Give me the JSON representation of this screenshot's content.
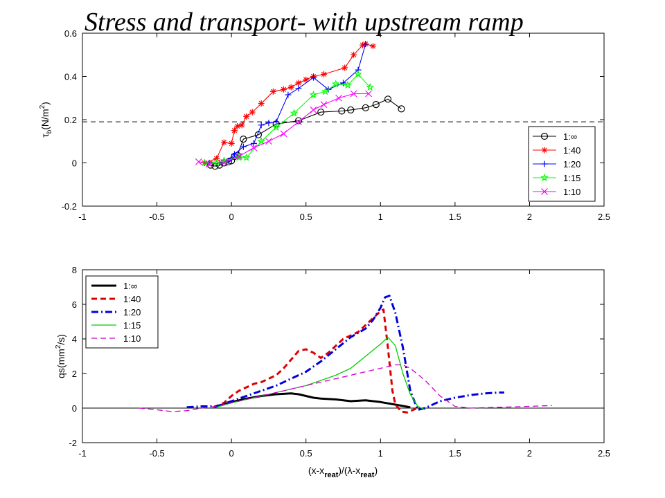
{
  "slide": {
    "title": "Stress and transport- with upstream ramp"
  },
  "chart_data": [
    {
      "type": "line",
      "ylabel_main": "τ",
      "ylabel_sub": "b",
      "ylabel_rest": "(N/m",
      "ylabel_sup": "2",
      "ylabel_close": ")",
      "xlim": [
        -1,
        2.5
      ],
      "ylim": [
        -0.2,
        0.6
      ],
      "xticks": [
        -1,
        -0.5,
        0,
        0.5,
        1,
        1.5,
        2,
        2.5
      ],
      "xtick_labels": [
        "-1",
        "-0.5",
        "0",
        "0.5",
        "1",
        "1.5",
        "2",
        "2.5"
      ],
      "yticks": [
        -0.2,
        0,
        0.2,
        0.4,
        0.6
      ],
      "ytick_labels": [
        "-0.2",
        "0",
        "0.2",
        "0.4",
        "0.6"
      ],
      "legend_position": "right",
      "reference_line": {
        "y": 0.19,
        "style": "dashed",
        "color": "#000000"
      },
      "series": [
        {
          "name": "1:∞",
          "color": "#000000",
          "marker": "circle",
          "x": [
            -0.14,
            -0.11,
            -0.08,
            -0.05,
            -0.02,
            0.0,
            0.02,
            0.04,
            0.08,
            0.18,
            0.3,
            0.45,
            0.6,
            0.74,
            0.8,
            0.9,
            0.97,
            1.05,
            1.14
          ],
          "y": [
            -0.01,
            -0.015,
            -0.01,
            0.0,
            0.005,
            0.01,
            0.03,
            0.035,
            0.11,
            0.13,
            0.18,
            0.195,
            0.235,
            0.24,
            0.245,
            0.255,
            0.27,
            0.295,
            0.25
          ]
        },
        {
          "name": "1:40",
          "color": "#ff0000",
          "marker": "asterisk",
          "x": [
            -0.18,
            -0.1,
            -0.05,
            0.0,
            0.02,
            0.04,
            0.07,
            0.1,
            0.14,
            0.2,
            0.28,
            0.35,
            0.4,
            0.45,
            0.5,
            0.55,
            0.62,
            0.76,
            0.82,
            0.88,
            0.9,
            0.95
          ],
          "y": [
            0.0,
            0.02,
            0.095,
            0.09,
            0.15,
            0.17,
            0.175,
            0.215,
            0.235,
            0.275,
            0.33,
            0.34,
            0.35,
            0.37,
            0.385,
            0.4,
            0.41,
            0.44,
            0.5,
            0.545,
            0.55,
            0.54
          ]
        },
        {
          "name": "1:20",
          "color": "#0000ff",
          "marker": "plus",
          "x": [
            -0.15,
            -0.08,
            -0.02,
            0.02,
            0.08,
            0.15,
            0.2,
            0.25,
            0.3,
            0.38,
            0.45,
            0.55,
            0.65,
            0.75,
            0.85,
            0.9
          ],
          "y": [
            0.0,
            0.0,
            0.01,
            0.04,
            0.075,
            0.09,
            0.175,
            0.185,
            0.19,
            0.315,
            0.345,
            0.395,
            0.34,
            0.37,
            0.43,
            0.55
          ]
        },
        {
          "name": "1:15",
          "color": "#00ff00",
          "marker": "pentagram",
          "x": [
            -0.18,
            -0.1,
            -0.05,
            0.05,
            0.1,
            0.2,
            0.3,
            0.42,
            0.55,
            0.63,
            0.7,
            0.78,
            0.85,
            0.93
          ],
          "y": [
            0.0,
            0.0,
            0.01,
            0.025,
            0.025,
            0.1,
            0.165,
            0.23,
            0.315,
            0.33,
            0.365,
            0.36,
            0.41,
            0.35
          ]
        },
        {
          "name": "1:10",
          "color": "#ff00ff",
          "marker": "x",
          "x": [
            -0.22,
            -0.15,
            -0.05,
            0.05,
            0.15,
            0.25,
            0.35,
            0.45,
            0.55,
            0.62,
            0.72,
            0.82,
            0.92
          ],
          "y": [
            0.005,
            -0.005,
            0.0,
            0.03,
            0.07,
            0.1,
            0.135,
            0.19,
            0.245,
            0.27,
            0.3,
            0.32,
            0.32
          ]
        }
      ]
    },
    {
      "type": "line",
      "ylabel_pre": "qs(mm",
      "ylabel_sup": "2",
      "ylabel_post": "/s)",
      "xlabel_parts": [
        "(x-x",
        "reat",
        ")/(λ-x",
        "reat",
        ")"
      ],
      "xlim": [
        -1,
        2.5
      ],
      "ylim": [
        -2,
        8
      ],
      "xticks": [
        -1,
        -0.5,
        0,
        0.5,
        1,
        1.5,
        2,
        2.5
      ],
      "xtick_labels": [
        "-1",
        "-0.5",
        "0",
        "0.5",
        "1",
        "1.5",
        "2",
        "2.5"
      ],
      "yticks": [
        -2,
        0,
        2,
        4,
        6,
        8
      ],
      "ytick_labels": [
        "-2",
        "0",
        "2",
        "4",
        "6",
        "8"
      ],
      "legend_position": "top-left",
      "reference_line": {
        "y": 0,
        "style": "solid",
        "color": "#000000"
      },
      "series": [
        {
          "name": "1:∞",
          "color": "#000000",
          "style": "solid",
          "width": 3,
          "x": [
            -0.12,
            0.0,
            0.1,
            0.2,
            0.3,
            0.4,
            0.45,
            0.5,
            0.55,
            0.6,
            0.7,
            0.8,
            0.9,
            1.0,
            1.1,
            1.2
          ],
          "y": [
            0.05,
            0.35,
            0.55,
            0.7,
            0.8,
            0.85,
            0.8,
            0.7,
            0.6,
            0.55,
            0.5,
            0.4,
            0.45,
            0.35,
            0.2,
            0.05
          ]
        },
        {
          "name": "1:40",
          "color": "#dd0000",
          "style": "dashed",
          "width": 3,
          "x": [
            -0.12,
            -0.05,
            0.0,
            0.05,
            0.1,
            0.15,
            0.2,
            0.25,
            0.3,
            0.35,
            0.4,
            0.45,
            0.5,
            0.55,
            0.6,
            0.65,
            0.7,
            0.75,
            0.8,
            0.85,
            0.9,
            0.95,
            1.0,
            1.02,
            1.05,
            1.08,
            1.1,
            1.14,
            1.18,
            1.22,
            1.25
          ],
          "y": [
            0.05,
            0.3,
            0.7,
            1.0,
            1.2,
            1.4,
            1.5,
            1.7,
            1.9,
            2.3,
            2.8,
            3.3,
            3.4,
            3.2,
            2.9,
            3.2,
            3.6,
            4.0,
            4.2,
            4.4,
            4.8,
            5.2,
            5.6,
            5.7,
            3.5,
            1.0,
            0.2,
            -0.2,
            -0.25,
            -0.1,
            0.0
          ]
        },
        {
          "name": "1:20",
          "color": "#0000dd",
          "style": "dashdot",
          "width": 3,
          "x": [
            -0.3,
            -0.2,
            -0.1,
            0.0,
            0.1,
            0.2,
            0.3,
            0.4,
            0.5,
            0.6,
            0.7,
            0.8,
            0.9,
            0.95,
            1.0,
            1.03,
            1.06,
            1.1,
            1.15,
            1.2,
            1.25,
            1.3,
            1.4,
            1.5,
            1.6,
            1.7,
            1.8,
            1.83
          ],
          "y": [
            0.05,
            0.1,
            0.1,
            0.4,
            0.7,
            1.0,
            1.3,
            1.7,
            2.1,
            2.7,
            3.4,
            4.1,
            4.6,
            5.1,
            5.8,
            6.4,
            6.5,
            5.5,
            3.5,
            1.0,
            -0.1,
            0.0,
            0.4,
            0.6,
            0.75,
            0.85,
            0.9,
            0.9
          ]
        },
        {
          "name": "1:15",
          "color": "#00cc00",
          "style": "solid",
          "width": 1.3,
          "x": [
            -0.1,
            0.0,
            0.1,
            0.2,
            0.3,
            0.4,
            0.5,
            0.6,
            0.7,
            0.8,
            0.9,
            1.0,
            1.05,
            1.1,
            1.15,
            1.2,
            1.25,
            1.3
          ],
          "y": [
            0.05,
            0.3,
            0.5,
            0.7,
            0.9,
            1.1,
            1.3,
            1.6,
            1.9,
            2.3,
            3.0,
            3.7,
            4.1,
            3.6,
            2.0,
            0.8,
            0.1,
            -0.1
          ]
        },
        {
          "name": "1:10",
          "color": "#cc00cc",
          "style": "dashed",
          "width": 1.3,
          "x": [
            -0.62,
            -0.5,
            -0.4,
            -0.3,
            -0.2,
            -0.1,
            0.0,
            0.2,
            0.4,
            0.6,
            0.8,
            1.0,
            1.1,
            1.15,
            1.2,
            1.3,
            1.4,
            1.5,
            1.6,
            1.8,
            2.0,
            2.15
          ],
          "y": [
            0.0,
            -0.1,
            -0.2,
            -0.15,
            0.0,
            0.1,
            0.3,
            0.7,
            1.1,
            1.5,
            1.9,
            2.3,
            2.5,
            2.5,
            2.3,
            1.6,
            0.7,
            0.1,
            0.0,
            0.05,
            0.1,
            0.15
          ]
        }
      ]
    }
  ]
}
